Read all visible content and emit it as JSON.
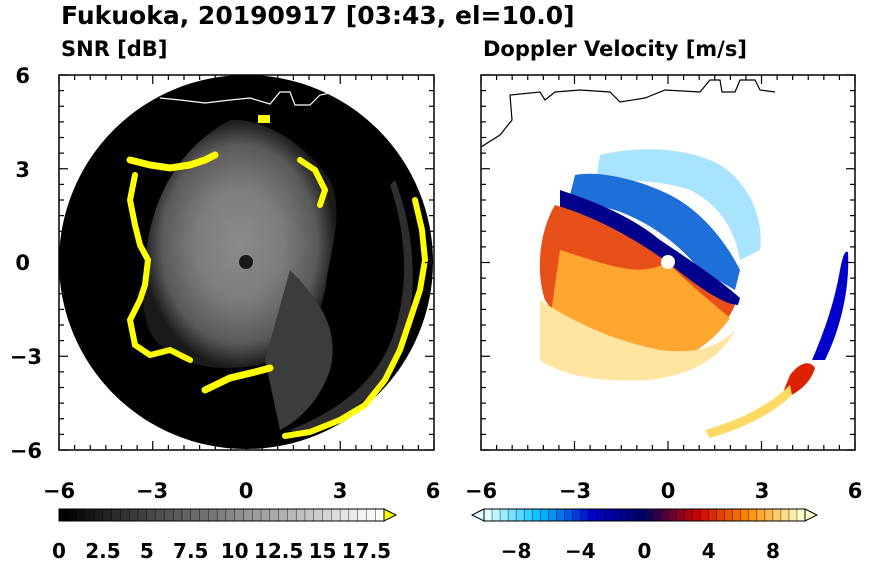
{
  "figure": {
    "title": "Fukuoka, 20190917 [03:43, el=10.0]"
  },
  "chart_data": [
    {
      "type": "heatmap",
      "title": "SNR [dB]",
      "xlim": [
        -6,
        6
      ],
      "ylim": [
        -6,
        6
      ],
      "x_ticks": [
        "−6",
        "−3",
        "0",
        "3",
        "6"
      ],
      "y_ticks": [
        "6",
        "3",
        "0",
        "−3",
        "−6"
      ],
      "grid": false,
      "range_limit": 6,
      "colorbar": {
        "min": 0,
        "max": 18.5,
        "step": 0.5,
        "ticks": [
          0,
          2.5,
          5,
          7.5,
          10,
          12.5,
          15,
          17.5
        ],
        "tick_labels": [
          "0",
          "2.5",
          "5",
          "7.5",
          "10",
          "12.5",
          "15",
          "17.5"
        ],
        "extend": "max",
        "colors": [
          "#000000",
          "#ffffff",
          "#ffff00"
        ]
      }
    },
    {
      "type": "heatmap",
      "title": "Doppler Velocity [m/s]",
      "xlim": [
        -6,
        6
      ],
      "ylim": [
        -6,
        6
      ],
      "x_ticks": [
        "−6",
        "−3",
        "0",
        "3",
        "6"
      ],
      "y_ticks": [
        "6",
        "3",
        "0",
        "−3",
        "−6"
      ],
      "grid": false,
      "colorbar": {
        "min": -10,
        "max": 10,
        "step": 0.5,
        "ticks": [
          -8,
          -4,
          0,
          4,
          8
        ],
        "tick_labels": [
          "−8",
          "−4",
          "0",
          "4",
          "8"
        ],
        "extend": "both",
        "colors": [
          "#e0ffff",
          "#00bfff",
          "#0000cd",
          "#000060",
          "#cc0000",
          "#ff8c00",
          "#ffffcc"
        ]
      }
    }
  ]
}
